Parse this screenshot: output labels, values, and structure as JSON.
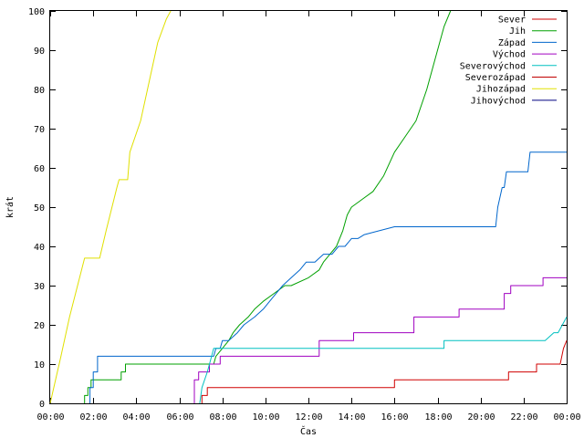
{
  "chart_data": {
    "type": "line",
    "xlabel": "Čas",
    "ylabel": "krát",
    "xlim": [
      0,
      24
    ],
    "ylim": [
      0,
      100
    ],
    "x_unit": "hours",
    "x_ticks": [
      {
        "value": 0,
        "label": "00:00"
      },
      {
        "value": 2,
        "label": "02:00"
      },
      {
        "value": 4,
        "label": "04:00"
      },
      {
        "value": 6,
        "label": "06:00"
      },
      {
        "value": 8,
        "label": "08:00"
      },
      {
        "value": 10,
        "label": "10:00"
      },
      {
        "value": 12,
        "label": "12:00"
      },
      {
        "value": 14,
        "label": "14:00"
      },
      {
        "value": 16,
        "label": "16:00"
      },
      {
        "value": 18,
        "label": "18:00"
      },
      {
        "value": 20,
        "label": "20:00"
      },
      {
        "value": 22,
        "label": "22:00"
      },
      {
        "value": 24,
        "label": "00:00"
      }
    ],
    "y_ticks": [
      0,
      10,
      20,
      30,
      40,
      50,
      60,
      70,
      80,
      90,
      100
    ],
    "grid": false,
    "legend_position": "top-right",
    "series": [
      {
        "name": "Sever",
        "color": "#d00000",
        "x": [
          7.05,
          7.05,
          7.3,
          7.3,
          16.0,
          16.0,
          21.3,
          21.3,
          22.6,
          22.6,
          23.7,
          23.85,
          24.0
        ],
        "y": [
          0,
          2,
          2,
          4,
          4,
          6,
          6,
          8,
          8,
          10,
          10,
          14,
          16
        ]
      },
      {
        "name": "Jih",
        "color": "#00a000",
        "x": [
          1.6,
          1.6,
          1.75,
          1.75,
          1.9,
          1.9,
          3.3,
          3.3,
          3.5,
          3.5,
          7.6,
          7.7,
          8.0,
          8.3,
          8.5,
          8.8,
          9.2,
          9.5,
          9.9,
          10.4,
          10.9,
          11.2,
          12.0,
          12.5,
          12.7,
          13.0,
          13.3,
          13.6,
          13.8,
          14.0,
          14.5,
          15.0,
          15.5,
          16.0,
          16.5,
          17.0,
          17.5,
          18.0,
          18.3,
          18.6
        ],
        "y": [
          0,
          2,
          2,
          4,
          4,
          6,
          6,
          8,
          8,
          10,
          10,
          12,
          14,
          16,
          18,
          20,
          22,
          24,
          26,
          28,
          30,
          30,
          32,
          34,
          36,
          38,
          40,
          44,
          48,
          50,
          52,
          54,
          58,
          64,
          68,
          72,
          80,
          90,
          96,
          100
        ]
      },
      {
        "name": "Západ",
        "color": "#0066cc",
        "x": [
          1.85,
          1.85,
          2.0,
          2.0,
          2.2,
          2.2,
          7.6,
          7.7,
          7.9,
          8.0,
          8.3,
          8.7,
          9.0,
          9.5,
          9.9,
          10.2,
          10.5,
          10.8,
          11.2,
          11.6,
          11.9,
          12.3,
          12.7,
          13.1,
          13.4,
          13.7,
          14.0,
          14.3,
          14.6,
          16.0,
          16.5,
          17.0,
          17.5,
          18.0,
          19.0,
          20.7,
          20.8,
          21.0,
          21.1,
          21.2,
          22.2,
          22.3,
          24.0
        ],
        "y": [
          0,
          4,
          4,
          8,
          8,
          12,
          12,
          14,
          14,
          16,
          16,
          18,
          20,
          22,
          24,
          26,
          28,
          30,
          32,
          34,
          36,
          36,
          38,
          38,
          40,
          40,
          42,
          42,
          43,
          45,
          45,
          45,
          45,
          45,
          45,
          45,
          50,
          55,
          55,
          59,
          59,
          64,
          64
        ]
      },
      {
        "name": "Východ",
        "color": "#a000c0",
        "x": [
          6.7,
          6.7,
          6.9,
          6.9,
          7.4,
          7.4,
          7.9,
          7.9,
          12.5,
          12.5,
          14.1,
          14.1,
          16.9,
          16.9,
          19.0,
          19.0,
          21.1,
          21.1,
          21.4,
          21.4,
          22.9,
          22.9,
          24.0
        ],
        "y": [
          0,
          6,
          6,
          8,
          8,
          10,
          10,
          12,
          12,
          16,
          16,
          18,
          18,
          22,
          22,
          24,
          24,
          28,
          28,
          30,
          30,
          32,
          32
        ]
      },
      {
        "name": "Severovýchod",
        "color": "#00c0c0",
        "x": [
          6.95,
          7.05,
          7.3,
          7.5,
          7.6,
          7.8,
          8.0,
          8.3,
          9.0,
          14.0,
          18.3,
          18.3,
          23.0,
          23.4,
          23.6,
          23.8,
          24.0
        ],
        "y": [
          0,
          4,
          8,
          12,
          14,
          14,
          14,
          14,
          14,
          14,
          14,
          16,
          16,
          18,
          18,
          20,
          22
        ]
      },
      {
        "name": "Severozápad",
        "color": "#c00000",
        "x": [],
        "y": []
      },
      {
        "name": "Jihozápad",
        "color": "#e0e000",
        "x": [
          0.0,
          0.5,
          0.9,
          1.6,
          1.8,
          2.3,
          2.6,
          3.1,
          3.2,
          3.6,
          3.7,
          4.2,
          4.6,
          5.0,
          5.4,
          5.6
        ],
        "y": [
          0,
          12,
          22,
          37,
          37,
          37,
          44,
          55,
          57,
          57,
          64,
          72,
          82,
          92,
          98,
          100
        ]
      },
      {
        "name": "Jihovýchod",
        "color": "#000080",
        "x": [],
        "y": []
      }
    ]
  }
}
